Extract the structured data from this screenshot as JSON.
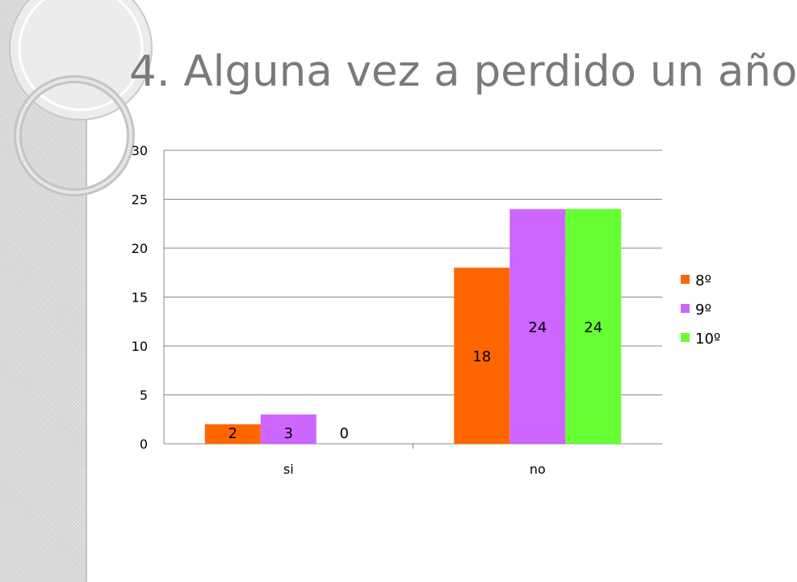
{
  "slide": {
    "title": "4. Alguna vez a perdido un año"
  },
  "colors": {
    "series_8": "#ff6600",
    "series_9": "#cc66ff",
    "series_10": "#66ff33",
    "title_text": "#7a7a7a",
    "axis_text": "#000000",
    "gridline": "#888888"
  },
  "chart_data": {
    "type": "bar",
    "title": "",
    "xlabel": "",
    "ylabel": "",
    "categories": [
      "si",
      "no"
    ],
    "series": [
      {
        "name": "8º",
        "values": [
          2,
          18
        ],
        "color": "#ff6600"
      },
      {
        "name": "9º",
        "values": [
          3,
          24
        ],
        "color": "#cc66ff"
      },
      {
        "name": "10º",
        "values": [
          0,
          24
        ],
        "color": "#66ff33"
      }
    ],
    "ylim": [
      0,
      30
    ],
    "yticks": [
      0,
      5,
      10,
      15,
      20,
      25,
      30
    ],
    "grid": true,
    "legend": "right",
    "data_labels": true
  }
}
